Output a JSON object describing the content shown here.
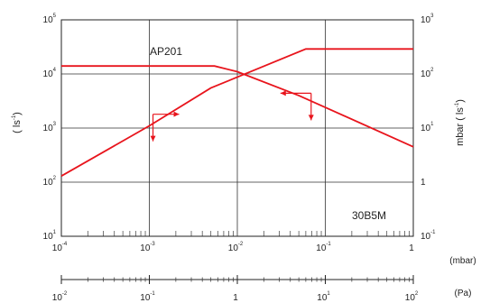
{
  "chart_data": {
    "type": "line",
    "x_scale": "log",
    "xlim_mbar": [
      0.0001,
      1
    ],
    "x_ticks_mbar": [
      {
        "base": "10",
        "exp": "-4"
      },
      {
        "base": "10",
        "exp": "-3"
      },
      {
        "base": "10",
        "exp": "-2"
      },
      {
        "base": "10",
        "exp": "-1"
      },
      {
        "base": "1",
        "exp": ""
      }
    ],
    "x_unit_mbar": "(mbar)",
    "x_ticks_pa": [
      {
        "base": "10",
        "exp": "-2"
      },
      {
        "base": "10",
        "exp": "-1"
      },
      {
        "base": "1",
        "exp": ""
      },
      {
        "base": "10",
        "exp": "1"
      },
      {
        "base": "10",
        "exp": "2"
      }
    ],
    "x_unit_pa": "(Pa)",
    "left_scale": "log",
    "left_ylim": [
      10,
      100000
    ],
    "left_ticks": [
      {
        "base": "10",
        "exp": "5"
      },
      {
        "base": "10",
        "exp": "4"
      },
      {
        "base": "10",
        "exp": "3"
      },
      {
        "base": "10",
        "exp": "2"
      },
      {
        "base": "10",
        "exp": "1"
      }
    ],
    "left_ylabel": "( ls",
    "left_ylabel_sup": "-1",
    "left_ylabel_end": ")",
    "right_scale": "log",
    "right_ylim": [
      0.1,
      1000
    ],
    "right_ticks": [
      {
        "base": "10",
        "exp": "3"
      },
      {
        "base": "10",
        "exp": "2"
      },
      {
        "base": "10",
        "exp": "1"
      },
      {
        "base": "1",
        "exp": ""
      },
      {
        "base": "10",
        "exp": "-1"
      }
    ],
    "right_ylabel": "mbar  ( ls",
    "right_ylabel_sup": "-1",
    "right_ylabel_end": ")",
    "grid": true,
    "color": "#e8141c",
    "series": [
      {
        "name": "AP201",
        "axis": "right",
        "x": [
          0.0001,
          0.001,
          0.005,
          0.06,
          1
        ],
        "y": [
          1.3,
          11,
          55,
          290,
          290
        ]
      },
      {
        "name": "30B5M",
        "axis": "left",
        "x": [
          0.0001,
          0.0055,
          0.01,
          0.05,
          1
        ],
        "y": [
          14000,
          14000,
          11000,
          4000,
          450
        ]
      }
    ],
    "arrows": [
      {
        "x": 0.0011,
        "y_left": 1800,
        "dir": "right"
      },
      {
        "x": 0.0011,
        "y_left": 1800,
        "dir": "down"
      },
      {
        "x": 0.069,
        "y_left": 4400,
        "dir": "left"
      },
      {
        "x": 0.069,
        "y_left": 4400,
        "dir": "down"
      }
    ]
  }
}
